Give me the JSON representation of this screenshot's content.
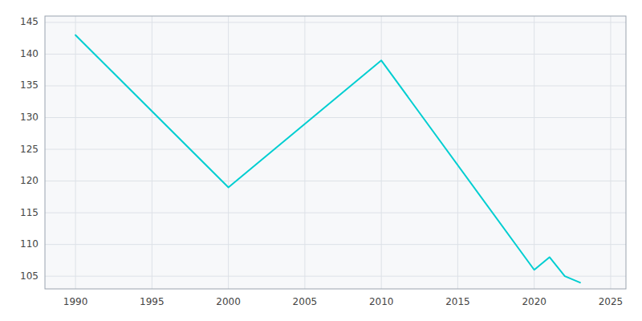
{
  "chart_data": {
    "type": "line",
    "x": [
      1990,
      2000,
      2010,
      2020,
      2021,
      2022,
      2023
    ],
    "values": [
      143,
      119,
      139,
      106,
      108,
      105,
      104
    ],
    "color": "#00CED1",
    "xlim": [
      1988,
      2026
    ],
    "ylim": [
      103,
      146
    ],
    "xticks": [
      1990,
      1995,
      2000,
      2005,
      2010,
      2015,
      2020,
      2025
    ],
    "yticks": [
      105,
      110,
      115,
      120,
      125,
      130,
      135,
      140,
      145
    ],
    "grid": true
  }
}
